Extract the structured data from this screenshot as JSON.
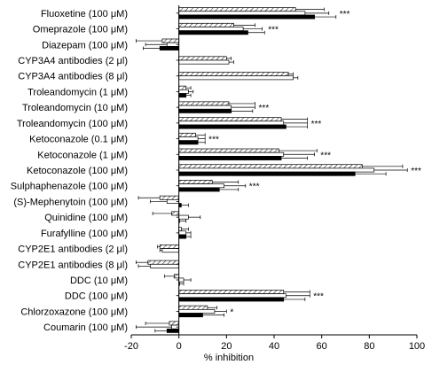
{
  "chart_data": {
    "type": "bar",
    "orientation": "horizontal",
    "xlabel": "% inhibition",
    "ylabel": "",
    "xlim": [
      -20,
      100
    ],
    "xticks": [
      "-20",
      "0",
      "20",
      "40",
      "60",
      "80",
      "100"
    ],
    "xtick_values": [
      -20,
      0,
      20,
      40,
      60,
      80,
      100
    ],
    "grid": false,
    "legend": "none",
    "series_styles": [
      {
        "pattern": "hatched",
        "color": "#000000"
      },
      {
        "pattern": "open",
        "color": "#000000"
      },
      {
        "pattern": "solid",
        "color": "#000000"
      }
    ],
    "categories": [
      {
        "name": "Fluoxetine",
        "dose": "(100 μM)",
        "values": [
          49,
          53,
          57
        ],
        "errors": [
          12,
          10,
          9
        ],
        "sig": "***"
      },
      {
        "name": "Omeprazole",
        "dose": "(100 μM)",
        "values": [
          23,
          27,
          29
        ],
        "errors": [
          9,
          8,
          7
        ],
        "sig": "***"
      },
      {
        "name": "Diazepam",
        "dose": "(100 μM)",
        "values": [
          -7,
          -5,
          -8
        ],
        "errors": [
          11,
          9,
          7
        ],
        "sig": ""
      },
      {
        "name": "CYP3A4 antibodies",
        "dose": "(2 μl)",
        "values": [
          20,
          21,
          null
        ],
        "errors": [
          2,
          2,
          null
        ],
        "sig": ""
      },
      {
        "name": "CYP3A4 antibodies",
        "dose": "(8 μl)",
        "values": [
          46,
          48,
          null
        ],
        "errors": [
          2,
          2,
          null
        ],
        "sig": ""
      },
      {
        "name": "Troleandomycin",
        "dose": "(1 μM)",
        "values": [
          3,
          4,
          3
        ],
        "errors": [
          2,
          2,
          2
        ],
        "sig": ""
      },
      {
        "name": "Troleandomycin",
        "dose": "(10 μM)",
        "values": [
          21,
          22,
          22
        ],
        "errors": [
          11,
          10,
          9
        ],
        "sig": "***"
      },
      {
        "name": "Troleandomycin",
        "dose": "(100 μM)",
        "values": [
          43,
          44,
          45
        ],
        "errors": [
          11,
          10,
          9
        ],
        "sig": "***"
      },
      {
        "name": "Ketoconazole",
        "dose": "(0.1 μM)",
        "values": [
          7,
          8,
          8
        ],
        "errors": [
          4,
          3,
          3
        ],
        "sig": "***"
      },
      {
        "name": "Ketoconazole",
        "dose": "(1 μM)",
        "values": [
          42,
          44,
          43
        ],
        "errors": [
          16,
          13,
          11
        ],
        "sig": "***"
      },
      {
        "name": "Ketoconazole",
        "dose": "(100 μM)",
        "values": [
          77,
          82,
          74
        ],
        "errors": [
          17,
          14,
          13
        ],
        "sig": "***"
      },
      {
        "name": "Sulphaphenazole",
        "dose": "(100 μM)",
        "values": [
          14,
          19,
          17
        ],
        "errors": [
          11,
          9,
          8
        ],
        "sig": "***"
      },
      {
        "name": "(S)-Mephenytoin",
        "dose": "(100 μM)",
        "values": [
          -8,
          -5,
          1
        ],
        "errors": [
          9,
          7,
          3
        ],
        "sig": ""
      },
      {
        "name": "Quinidine",
        "dose": "(100 μM)",
        "values": [
          -3,
          4,
          0
        ],
        "errors": [
          8,
          5,
          3
        ],
        "sig": ""
      },
      {
        "name": "Furafylline",
        "dose": "(100 μM)",
        "values": [
          1,
          3,
          3
        ],
        "errors": [
          3,
          2,
          2
        ],
        "sig": ""
      },
      {
        "name": "CYP2E1 antibodies",
        "dose": "(2 μl)",
        "values": [
          -8,
          -7,
          null
        ],
        "errors": [
          1,
          1,
          null
        ],
        "sig": ""
      },
      {
        "name": "CYP2E1 antibodies",
        "dose": "(8 μl)",
        "values": [
          -13,
          -12,
          null
        ],
        "errors": [
          5,
          5,
          null
        ],
        "sig": ""
      },
      {
        "name": "DDC",
        "dose": "(10 μM)",
        "values": [
          -2,
          2,
          0
        ],
        "errors": [
          4,
          3,
          2
        ],
        "sig": ""
      },
      {
        "name": "DDC",
        "dose": "(100 μM)",
        "values": [
          44,
          45,
          44
        ],
        "errors": [
          11,
          10,
          9
        ],
        "sig": "***"
      },
      {
        "name": "Chlorzoxazone",
        "dose": "(100 μM)",
        "values": [
          12,
          15,
          10
        ],
        "errors": [
          4,
          5,
          9
        ],
        "sig": "*"
      },
      {
        "name": "Coumarin",
        "dose": "(100 μM)",
        "values": [
          -4,
          -3,
          -5
        ],
        "errors": [
          10,
          15,
          5
        ],
        "sig": ""
      }
    ]
  }
}
